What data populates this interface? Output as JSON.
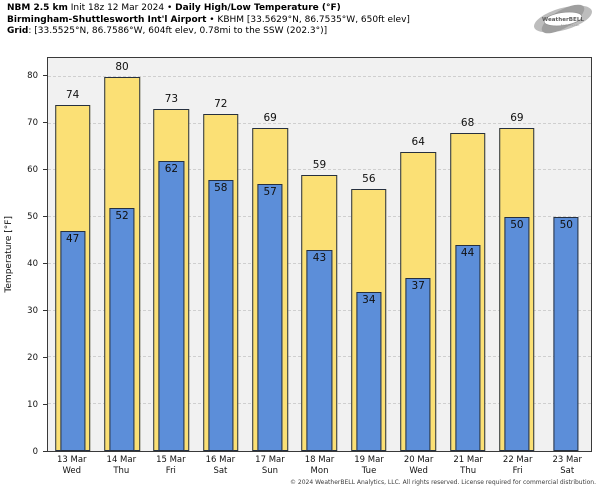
{
  "header": {
    "line1_bold1": "NBM 2.5 km",
    "line1_regular": " Init 18z 12 Mar 2024 • ",
    "line1_bold2": "Daily High/Low Temperature (°F)",
    "line2_bold": "Birmingham-Shuttlesworth Int'l Airport",
    "line2_regular": " • KBHM [33.5629°N, 86.7535°W, 650ft elev]",
    "line3_bold": "Grid",
    "line3_regular": ": [33.5525°N, 86.7586°W, 604ft elev, 0.78mi to the SSW (202.3°)]"
  },
  "logo": {
    "text": "WeatherBELL",
    "subtext": "Analytics LLC"
  },
  "chart_data": {
    "type": "bar",
    "title": "Daily High/Low Temperature (°F)",
    "categories": [
      {
        "date": "13 Mar",
        "day": "Wed"
      },
      {
        "date": "14 Mar",
        "day": "Thu"
      },
      {
        "date": "15 Mar",
        "day": "Fri"
      },
      {
        "date": "16 Mar",
        "day": "Sat"
      },
      {
        "date": "17 Mar",
        "day": "Sun"
      },
      {
        "date": "18 Mar",
        "day": "Mon"
      },
      {
        "date": "19 Mar",
        "day": "Tue"
      },
      {
        "date": "20 Mar",
        "day": "Wed"
      },
      {
        "date": "21 Mar",
        "day": "Thu"
      },
      {
        "date": "22 Mar",
        "day": "Fri"
      },
      {
        "date": "23 Mar",
        "day": "Sat"
      }
    ],
    "series": [
      {
        "name": "High",
        "color": "#fbe075",
        "values": [
          74,
          80,
          73,
          72,
          69,
          59,
          56,
          64,
          68,
          69,
          null
        ]
      },
      {
        "name": "Low",
        "color": "#5c8ed9",
        "values": [
          47,
          52,
          62,
          58,
          57,
          43,
          34,
          37,
          44,
          50,
          50
        ]
      }
    ],
    "ylabel": "Temperature [°F]",
    "ylim": [
      0,
      84
    ],
    "yticks": [
      0,
      10,
      20,
      30,
      40,
      50,
      60,
      70,
      80
    ],
    "grid": "horizontal-dashed",
    "legend": "none",
    "plot_bg": "#f1f1f1"
  },
  "footer": {
    "copyright": "© 2024 WeatherBELL Analytics, LLC. All rights reserved. License required for commercial distribution."
  }
}
